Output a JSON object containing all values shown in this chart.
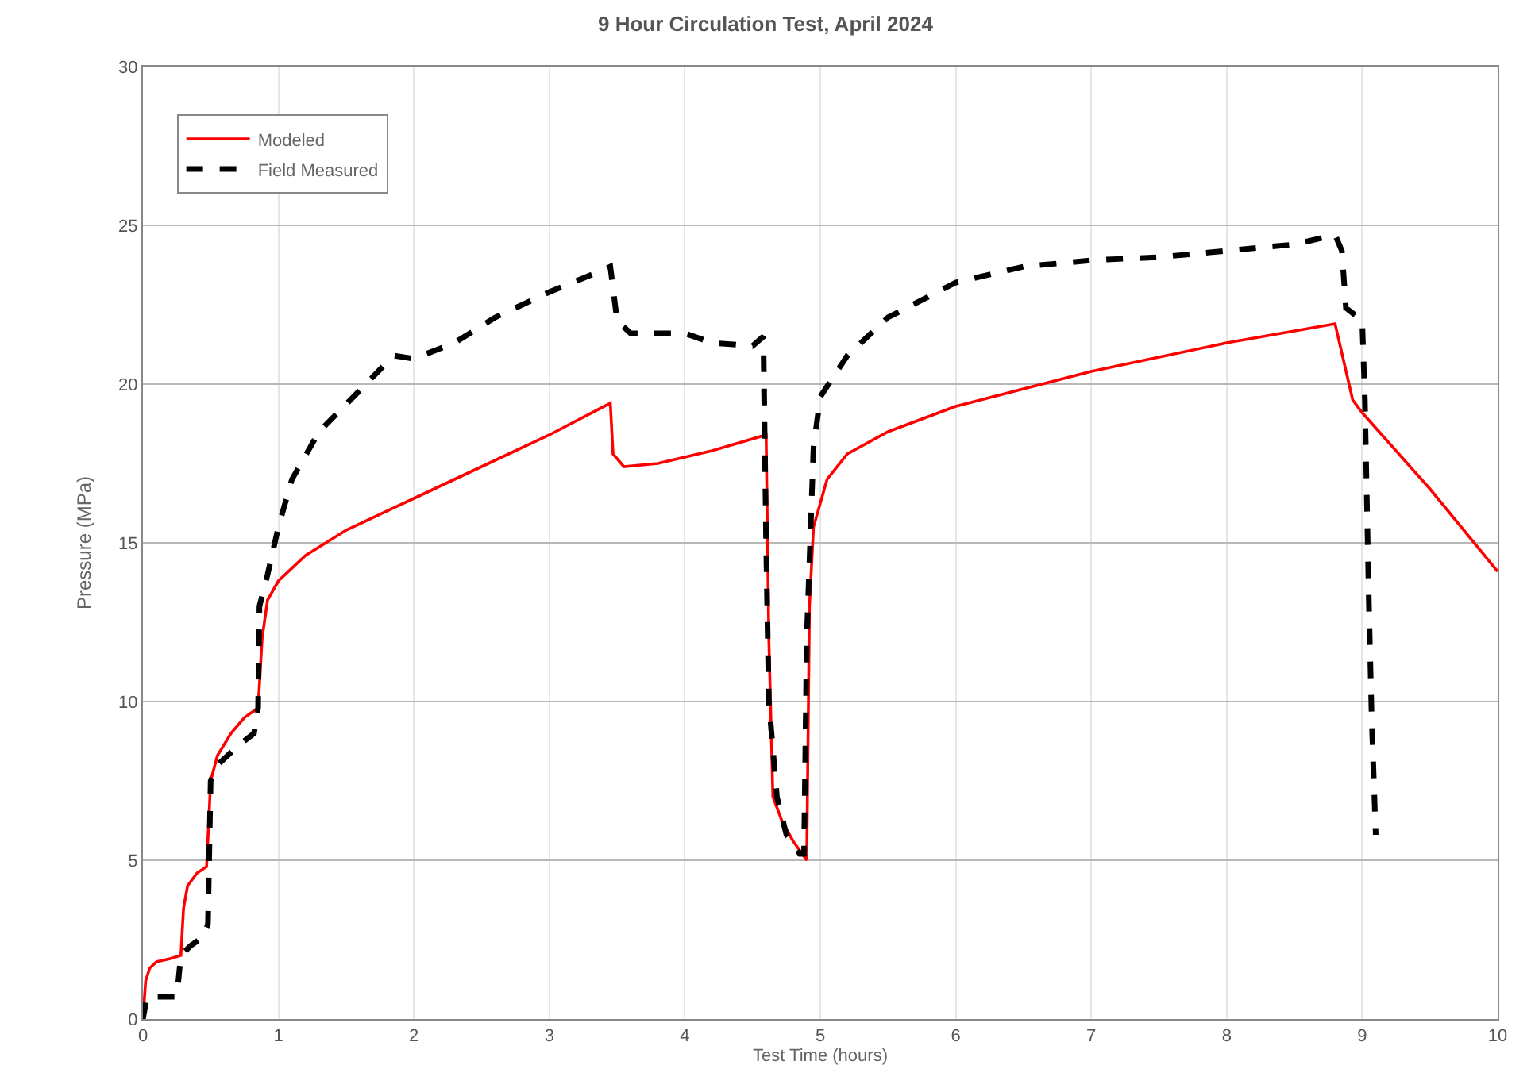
{
  "chart_data": {
    "type": "line",
    "title": "9 Hour Circulation Test, April 2024",
    "xlabel": "Test Time (hours)",
    "ylabel": "Pressure (MPa)",
    "xlim": [
      0,
      10
    ],
    "xticks": [
      0,
      1,
      2,
      3,
      4,
      5,
      6,
      7,
      8,
      9,
      10
    ],
    "ylim": [
      0,
      30
    ],
    "yticks": [
      0,
      5,
      10,
      15,
      20,
      25,
      30
    ],
    "grid": true,
    "legend": "top left",
    "marker": "none",
    "series": [
      {
        "name": "Modeled",
        "color": "#ff0000",
        "line_style": "solid",
        "x": [
          0,
          0.02,
          0.05,
          0.1,
          0.2,
          0.28,
          0.3,
          0.33,
          0.4,
          0.47,
          0.5,
          0.55,
          0.65,
          0.75,
          0.85,
          0.88,
          0.92,
          1.0,
          1.2,
          1.5,
          2,
          2.5,
          3,
          3.45,
          3.47,
          3.55,
          3.8,
          4.2,
          4.6,
          4.62,
          4.65,
          4.72,
          4.8,
          4.9,
          4.92,
          4.95,
          5.05,
          5.2,
          5.5,
          6,
          7,
          8,
          8.8,
          8.93,
          9.0,
          9.5,
          10
        ],
        "values": [
          0,
          1.2,
          1.6,
          1.8,
          1.9,
          2.0,
          3.5,
          4.2,
          4.6,
          4.8,
          7.5,
          8.3,
          9.0,
          9.5,
          9.8,
          12,
          13.2,
          13.8,
          14.6,
          15.4,
          16.4,
          17.4,
          18.4,
          19.4,
          17.8,
          17.4,
          17.5,
          17.9,
          18.4,
          12,
          7,
          6.2,
          5.6,
          5.0,
          13,
          15.5,
          17,
          17.8,
          18.5,
          19.3,
          20.4,
          21.3,
          21.9,
          19.5,
          19.1,
          16.7,
          14.1
        ]
      },
      {
        "name": "Field Measured",
        "color": "#000000",
        "line_style": "dashed",
        "x": [
          0,
          0.03,
          0.25,
          0.28,
          0.35,
          0.45,
          0.48,
          0.5,
          0.55,
          0.7,
          0.82,
          0.85,
          0.86,
          0.92,
          1.0,
          1.1,
          1.3,
          1.6,
          1.85,
          2.0,
          2.3,
          2.6,
          3.0,
          3.4,
          3.45,
          3.5,
          3.6,
          4.0,
          4.2,
          4.5,
          4.58,
          4.6,
          4.62,
          4.68,
          4.75,
          4.85,
          4.88,
          4.9,
          4.95,
          5.0,
          5.2,
          5.5,
          6.0,
          6.5,
          7.0,
          7.5,
          8.0,
          8.5,
          8.8,
          8.85,
          8.88,
          9.0,
          9.02,
          9.05,
          9.07,
          9.1
        ],
        "values": [
          0,
          0.7,
          0.7,
          2.0,
          2.3,
          2.6,
          3,
          7.5,
          8.0,
          8.6,
          9.0,
          9.8,
          13,
          14,
          15.5,
          17,
          18.5,
          19.8,
          20.9,
          20.8,
          21.3,
          22.1,
          22.9,
          23.6,
          23.7,
          22,
          21.6,
          21.6,
          21.3,
          21.2,
          21.5,
          15,
          10,
          7,
          5.8,
          5.2,
          5.2,
          12,
          18,
          19.6,
          20.9,
          22.1,
          23.2,
          23.7,
          23.9,
          24.0,
          24.2,
          24.4,
          24.7,
          24.2,
          22.4,
          22,
          19.5,
          13,
          9.5,
          5.8
        ]
      }
    ]
  }
}
